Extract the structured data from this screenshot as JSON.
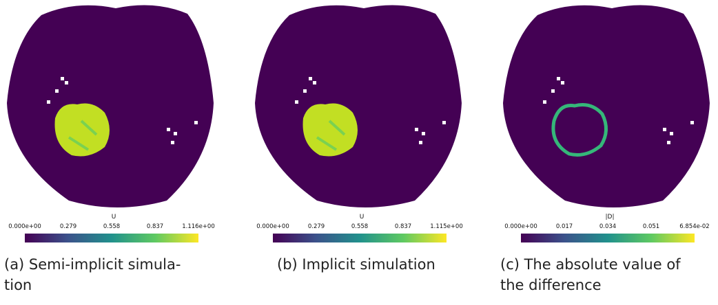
{
  "panels": [
    {
      "colorbar": {
        "title": "U",
        "ticks": [
          "0.000e+00",
          "0.279",
          "0.558",
          "0.837",
          "1.116e+00"
        ]
      },
      "caption": [
        "(a) Semi-implicit simula-",
        "tion"
      ]
    },
    {
      "colorbar": {
        "title": "U",
        "ticks": [
          "0.000e+00",
          "0.279",
          "0.558",
          "0.837",
          "1.115e+00"
        ]
      },
      "caption": [
        "(b) Implicit simulation"
      ]
    },
    {
      "colorbar": {
        "title": "|D|",
        "ticks": [
          "0.000e+00",
          "0.017",
          "0.034",
          "0.051",
          "6.854e-02"
        ]
      },
      "caption": [
        "(c) The absolute value of",
        "the difference"
      ]
    }
  ]
}
